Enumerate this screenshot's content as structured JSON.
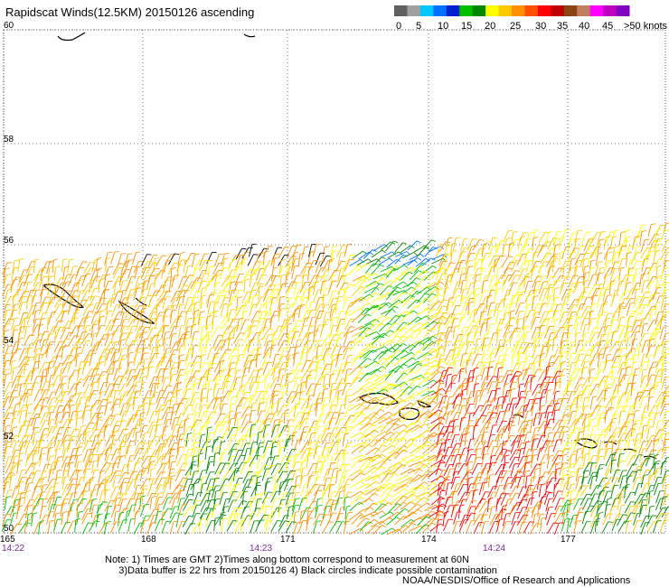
{
  "title": "Rapidscat Winds(12.5KM) 20150126 ascending",
  "legend": {
    "colors": [
      "#606060",
      "#a0a0a0",
      "#00c8ff",
      "#0070ff",
      "#0020d0",
      "#00c000",
      "#008800",
      "#ffff00",
      "#ffc800",
      "#ff9000",
      "#ff5000",
      "#ff0000",
      "#c00000",
      "#8b4513",
      "#c08060",
      "#ff00ff",
      "#c000c0",
      "#8000c0"
    ],
    "labels": [
      "0",
      "5",
      "10",
      "15",
      "20",
      "25",
      "30",
      "35",
      "40",
      "45",
      ">50 knots"
    ]
  },
  "lat_labels": [
    "60",
    "58",
    "56",
    "54",
    "52",
    "50"
  ],
  "lon_labels": [
    "165",
    "168",
    "171",
    "174",
    "177"
  ],
  "time_labels": [
    "14:22",
    "14:23",
    "14:24"
  ],
  "notes": {
    "line1": "Note: 1) Times are GMT 2)Times along bottom correspond to measurement at 60N",
    "line2": "3)Data buffer is 22 hrs from 20150126 4) Black circles indicate possible contamination"
  },
  "credit": "NOAA/NESDIS/Office of Research and Applications"
}
